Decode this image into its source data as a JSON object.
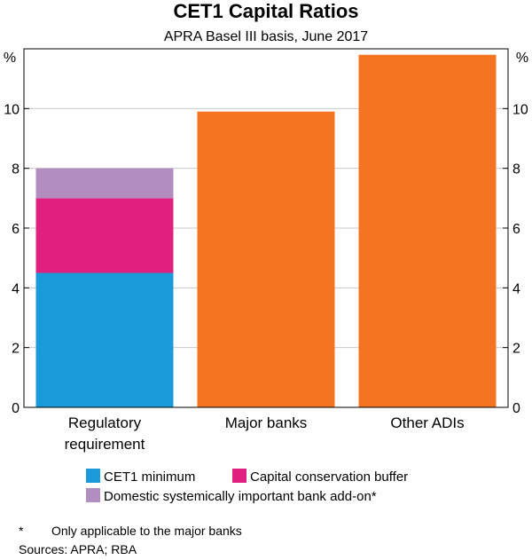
{
  "chart_data": {
    "type": "bar",
    "stacked": true,
    "title": "CET1 Capital Ratios",
    "subtitle": "APRA Basel III basis, June 2017",
    "ylabel_left": "%",
    "ylabel_right": "%",
    "ylim": [
      0,
      12
    ],
    "yticks": [
      0,
      2,
      4,
      6,
      8,
      10
    ],
    "categories": [
      "Regulatory requirement",
      "Major banks",
      "Other ADIs"
    ],
    "category_lines": [
      [
        "Regulatory",
        "requirement"
      ],
      [
        "Major banks"
      ],
      [
        "Other ADIs"
      ]
    ],
    "series": [
      {
        "name": "CET1 minimum",
        "color": "#1a9ad8",
        "values": [
          4.5,
          null,
          null
        ]
      },
      {
        "name": "Capital conservation buffer",
        "color": "#e0207f",
        "values": [
          2.5,
          null,
          null
        ]
      },
      {
        "name": "Domestic systemically important bank add-on*",
        "color": "#b28ec0",
        "values": [
          1.0,
          null,
          null
        ]
      },
      {
        "name": "",
        "color": "#f47421",
        "values": [
          null,
          9.9,
          11.8
        ]
      }
    ],
    "grid": true,
    "legend_position": "bottom"
  },
  "footnote": {
    "marker": "*",
    "text": "Only applicable to the major banks"
  },
  "sources": "Sources: APRA; RBA"
}
